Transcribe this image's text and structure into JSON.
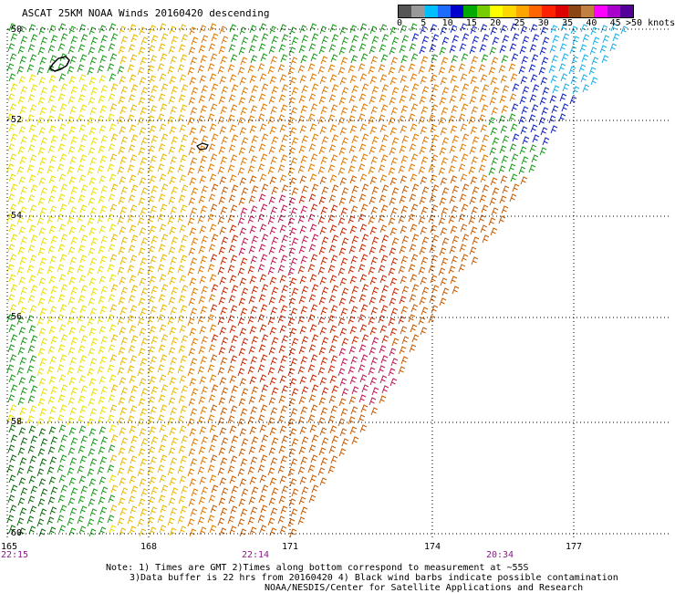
{
  "title": "ASCAT 25KM NOAA Winds 20160420 descending",
  "legend": {
    "labels": [
      "0",
      "5",
      "10",
      "15",
      "20",
      "25",
      "30",
      "35",
      "40",
      "45"
    ],
    "unit_label": ">50 knots",
    "colors": [
      "#555555",
      "#999999",
      "#00bfff",
      "#1e6cff",
      "#0000cd",
      "#00aa00",
      "#77cc00",
      "#ffff00",
      "#ffd700",
      "#ffa500",
      "#ff6600",
      "#ff2200",
      "#dd0000",
      "#8b4513",
      "#c08040",
      "#ff00ff",
      "#aa00cc",
      "#550099"
    ]
  },
  "axes": {
    "lat_labels": [
      "-50",
      "-52",
      "-54",
      "-56",
      "-58",
      "-60"
    ],
    "lon_labels": [
      "165",
      "168",
      "171",
      "174",
      "177"
    ],
    "time_labels": [
      "22:15",
      "22:14",
      "20:34"
    ]
  },
  "notes": {
    "line1": "Note: 1) Times are GMT 2)Times along bottom correspond to measurement at ~55S",
    "line2": "3)Data buffer is 22 hrs from 20160420 4) Black wind barbs indicate possible contamination",
    "line3": "NOAA/NESDIS/Center for Satellite Applications and Research"
  },
  "wind_colors": {
    "green": "#1a9a1a",
    "dark_green": "#0a6a0a",
    "yellow": "#e8e000",
    "gold": "#e8b800",
    "orange": "#e07800",
    "dark_orange": "#c85a00",
    "red": "#c82800",
    "crimson": "#c01850",
    "blue": "#1020c0",
    "cyan": "#1ab0e8",
    "black": "#000000"
  }
}
